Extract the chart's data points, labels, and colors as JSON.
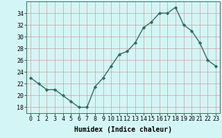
{
  "x": [
    0,
    1,
    2,
    3,
    4,
    5,
    6,
    7,
    8,
    9,
    10,
    11,
    12,
    13,
    14,
    15,
    16,
    17,
    18,
    19,
    20,
    21,
    22,
    23
  ],
  "y": [
    23,
    22,
    21,
    21,
    20,
    19,
    18,
    18,
    21.5,
    23,
    25,
    27,
    27.5,
    29,
    31.5,
    32.5,
    34,
    34,
    35,
    32,
    31,
    29,
    26,
    25
  ],
  "line_color": "#2e6b5e",
  "marker": "D",
  "marker_size": 2.2,
  "bg_color": "#d4f5f5",
  "grid_color_major": "#c8a8a8",
  "grid_color_minor": "#d8e8e8",
  "xlabel": "Humidex (Indice chaleur)",
  "ylim": [
    17,
    36
  ],
  "yticks": [
    18,
    20,
    22,
    24,
    26,
    28,
    30,
    32,
    34
  ],
  "xticks": [
    0,
    1,
    2,
    3,
    4,
    5,
    6,
    7,
    8,
    9,
    10,
    11,
    12,
    13,
    14,
    15,
    16,
    17,
    18,
    19,
    20,
    21,
    22,
    23
  ],
  "xlabel_fontsize": 7,
  "tick_fontsize": 6,
  "line_width": 1.0
}
